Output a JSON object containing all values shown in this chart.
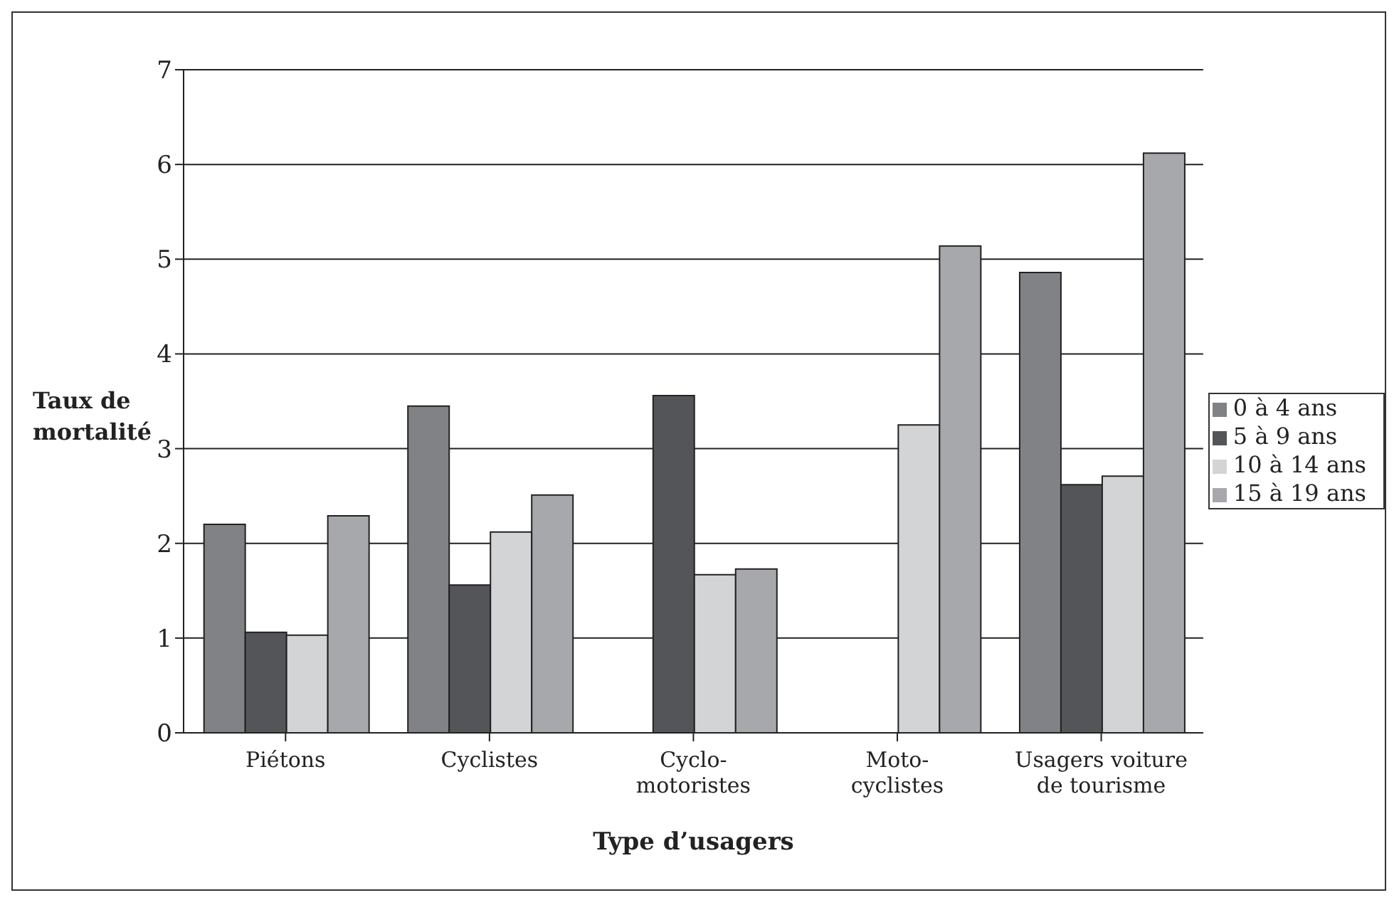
{
  "chart_data": {
    "type": "bar",
    "xlabel": "Type d’usagers",
    "ylabel": "Taux de\nmortalité",
    "categories": [
      "Piétons",
      "Cyclistes",
      "Cyclo-\nmotoristes",
      "Moto-\ncyclistes",
      "Usagers voiture\nde tourisme"
    ],
    "series": [
      {
        "name": "0 à 4 ans",
        "color": "#808285",
        "values": [
          2.2,
          3.45,
          0,
          0,
          4.86
        ]
      },
      {
        "name": "5 à 9 ans",
        "color": "#545559",
        "values": [
          1.06,
          1.56,
          3.56,
          0,
          2.62
        ]
      },
      {
        "name": "10 à 14 ans",
        "color": "#d3d4d6",
        "values": [
          1.03,
          2.12,
          1.67,
          3.25,
          2.71
        ]
      },
      {
        "name": "15 à 19 ans",
        "color": "#a7a8ab",
        "values": [
          2.29,
          2.51,
          1.73,
          5.14,
          6.12
        ]
      }
    ],
    "ylim": [
      0,
      7
    ],
    "yticks": [
      0,
      1,
      2,
      3,
      4,
      5,
      6,
      7
    ],
    "grid": "y",
    "legend": "right"
  }
}
